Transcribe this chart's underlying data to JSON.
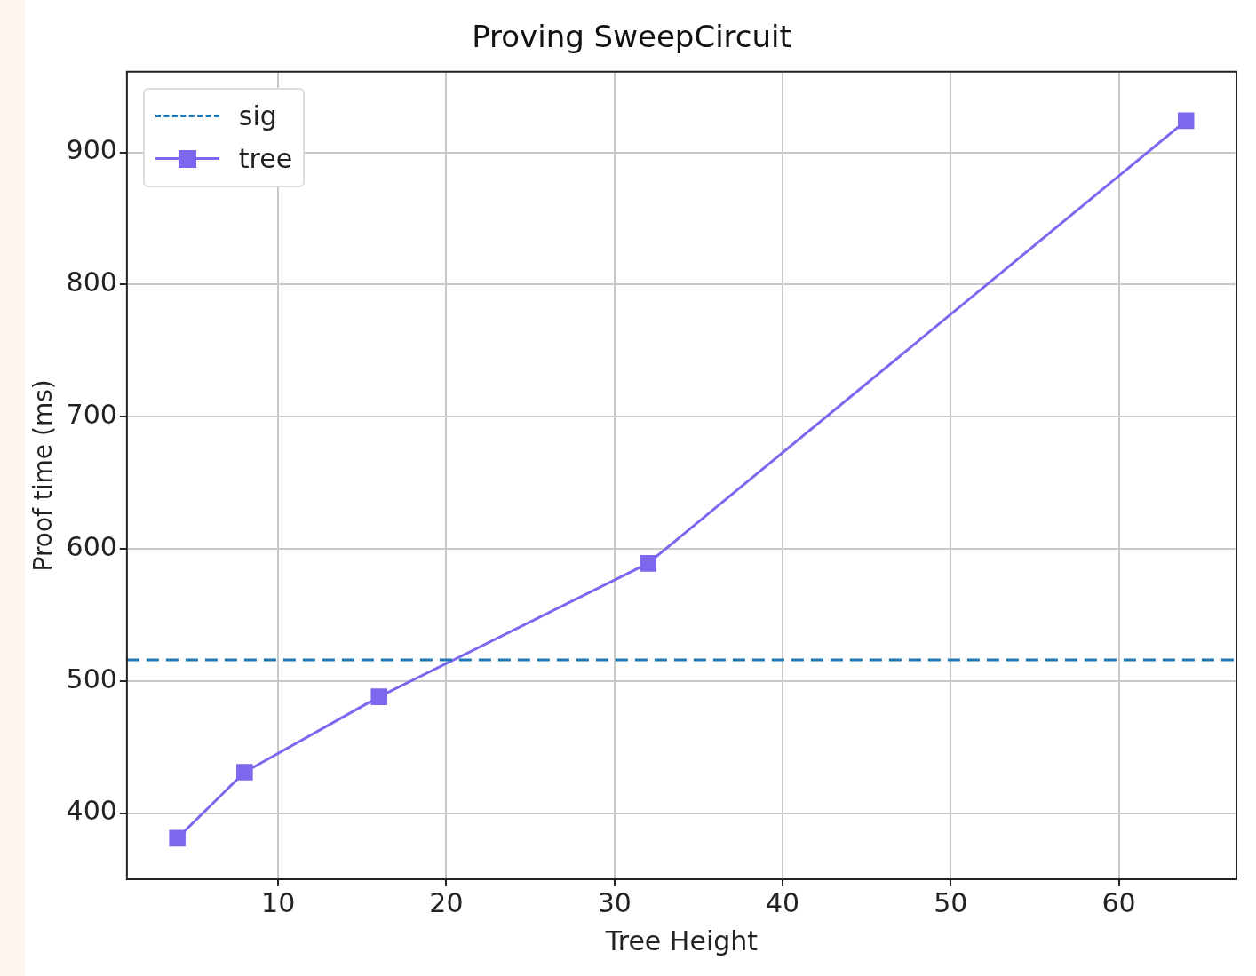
{
  "chart_data": {
    "type": "line",
    "title": "Proving SweepCircuit",
    "xlabel": "Tree Height",
    "ylabel": "Proof time (ms)",
    "x": [
      4,
      8,
      16,
      32,
      64
    ],
    "series": [
      {
        "name": "tree",
        "color": "#7b68ee",
        "values": [
          381,
          431,
          488,
          589,
          924
        ]
      }
    ],
    "ref_lines": [
      {
        "axis": "y",
        "value": 516,
        "label": "sig",
        "color": "#1f77b4",
        "line_style": "dashed"
      }
    ],
    "xlim": [
      1,
      67
    ],
    "xticks": [
      10,
      20,
      30,
      40,
      50,
      60
    ],
    "ylim": [
      350,
      961
    ],
    "yticks": [
      400,
      500,
      600,
      700,
      800,
      900
    ],
    "grid": true,
    "legend": "top left",
    "marker": "square",
    "line_style": "solid"
  }
}
